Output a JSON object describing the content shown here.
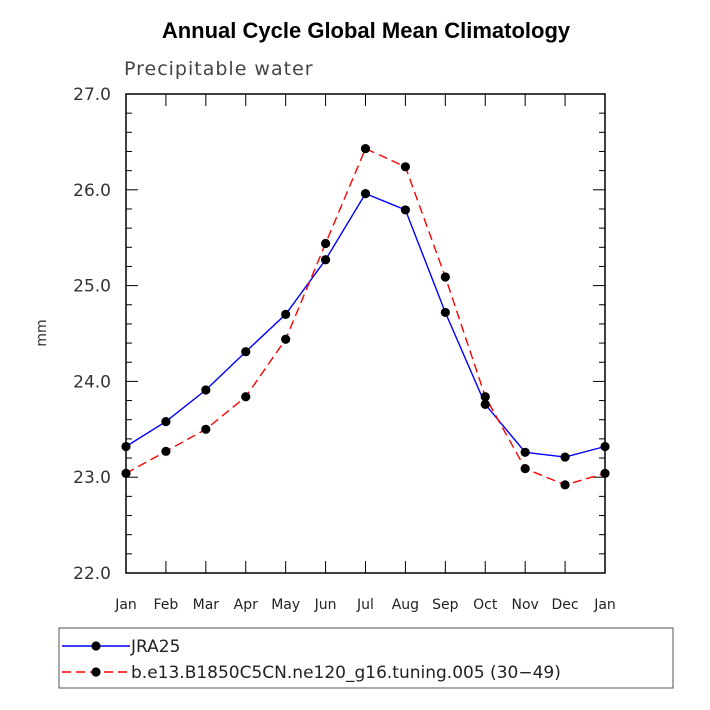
{
  "chart_data": {
    "type": "line",
    "title": "Annual Cycle Global Mean Climatology",
    "subtitle": "Precipitable water",
    "ylabel": "mm",
    "xlabel": "",
    "categories": [
      "Jan",
      "Feb",
      "Mar",
      "Apr",
      "May",
      "Jun",
      "Jul",
      "Aug",
      "Sep",
      "Oct",
      "Nov",
      "Dec",
      "Jan"
    ],
    "ylim": [
      22.0,
      27.0
    ],
    "yticks": [
      "22.0",
      "23.0",
      "24.0",
      "25.0",
      "26.0",
      "27.0"
    ],
    "grid": false,
    "legend_placement": "bottom",
    "series": [
      {
        "name": "JRA25",
        "color": "#0000ff",
        "dash": "solid",
        "values": [
          23.32,
          23.58,
          23.91,
          24.31,
          24.7,
          25.27,
          25.96,
          25.79,
          24.72,
          23.76,
          23.26,
          23.21,
          23.32
        ]
      },
      {
        "name": "b.e13.B1850C5CN.ne120_g16.tuning.005 (30−49)",
        "color": "#ff0000",
        "dash": "dashed",
        "values": [
          23.04,
          23.27,
          23.5,
          23.84,
          24.44,
          25.44,
          26.43,
          26.24,
          25.09,
          23.84,
          23.09,
          22.92,
          23.04
        ]
      }
    ]
  }
}
